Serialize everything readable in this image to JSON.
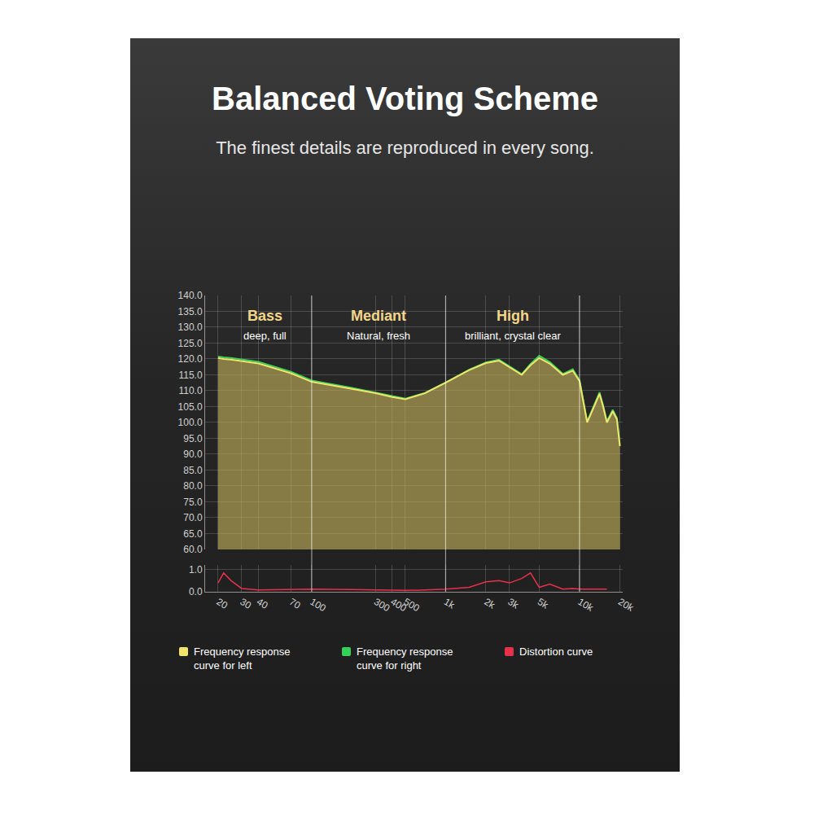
{
  "chart_data": {
    "type": "line",
    "title": "Balanced Voting Scheme",
    "subtitle": "The finest details are reproduced in every song.",
    "log": "x",
    "grid": true,
    "legend": "bottom",
    "x": [
      20,
      22,
      25,
      30,
      40,
      70,
      100,
      200,
      300,
      400,
      500,
      700,
      1000,
      1500,
      2000,
      2500,
      3000,
      3700,
      4300,
      5000,
      6000,
      7500,
      8900,
      10000,
      11400,
      12500,
      14100,
      15000,
      16000,
      17700,
      19000,
      20000
    ],
    "series": [
      {
        "name": "Frequency response curve for left",
        "color": "#f2e36a",
        "values": [
          120.3,
          120,
          119.8,
          119.4,
          118.6,
          115.5,
          112.8,
          110.6,
          109.2,
          108,
          107.3,
          109.2,
          112.5,
          116.5,
          118.7,
          119.5,
          117.5,
          115,
          118,
          120.3,
          118.5,
          115,
          116.3,
          113,
          100,
          104,
          109,
          105,
          100,
          103.5,
          101,
          92.5
        ]
      },
      {
        "name": "Frequency response curve for right",
        "color": "#35d05a",
        "values": [
          120.8,
          120.5,
          120.3,
          119.9,
          119.1,
          116,
          113.2,
          110.9,
          109.4,
          108.2,
          107.5,
          109.3,
          112.6,
          116.6,
          118.9,
          119.8,
          117.7,
          115.2,
          118.4,
          121,
          119,
          115.3,
          116.8,
          113.3,
          100.3,
          104.3,
          109.5,
          105.3,
          100.4,
          104,
          101.4,
          93
        ]
      },
      {
        "name": "Distortion curve",
        "color": "#e8304a",
        "axis": "y2",
        "values": [
          0.4,
          0.85,
          0.5,
          0.15,
          0.08,
          0.1,
          0.12,
          0.1,
          0.08,
          0.06,
          0.06,
          0.08,
          0.12,
          0.2,
          0.45,
          0.5,
          0.4,
          0.6,
          0.85,
          0.2,
          0.35,
          0.12,
          0.15,
          0.12,
          0.12,
          0.12,
          0.12,
          0.12,
          0.12,
          null,
          null,
          null
        ]
      }
    ],
    "sections": [
      {
        "label": "Bass",
        "note": "deep, full",
        "from": 20,
        "to": 100
      },
      {
        "label": "Mediant",
        "note": "Natural, fresh",
        "from": 100,
        "to": 1000
      },
      {
        "label": "High",
        "note": "brilliant, crystal clear",
        "from": 1000,
        "to": 10000
      }
    ],
    "xlim": [
      16,
      21000
    ],
    "xticks": [
      20,
      30,
      40,
      70,
      100,
      300,
      400,
      500,
      {
        "value": 1000,
        "label": "1k"
      },
      {
        "value": 2000,
        "label": "2k"
      },
      {
        "value": 3000,
        "label": "3k"
      },
      {
        "value": 5000,
        "label": "5k"
      },
      {
        "value": 10000,
        "label": "10k"
      },
      {
        "value": 20000,
        "label": "20k"
      }
    ],
    "ylim": [
      60,
      140
    ],
    "yticks": [
      {
        "value": 60,
        "label": "60.0"
      },
      {
        "value": 65,
        "label": "65.0"
      },
      {
        "value": 70,
        "label": "70.0"
      },
      {
        "value": 75,
        "label": "75.0"
      },
      {
        "value": 80,
        "label": "80.0"
      },
      {
        "value": 85,
        "label": "85.0"
      },
      {
        "value": 90,
        "label": "90.0"
      },
      {
        "value": 95,
        "label": "95.0"
      },
      {
        "value": 100,
        "label": "100.0"
      },
      {
        "value": 105,
        "label": "105.0"
      },
      {
        "value": 110,
        "label": "110.0"
      },
      {
        "value": 115,
        "label": "115.0"
      },
      {
        "value": 120,
        "label": "120.0"
      },
      {
        "value": 125,
        "label": "125.0"
      },
      {
        "value": 130,
        "label": "130.0"
      },
      {
        "value": 135,
        "label": "135.0"
      },
      {
        "value": 140,
        "label": "140.0"
      }
    ],
    "y2lim": [
      0,
      1.2
    ],
    "y2ticks": [
      {
        "value": 0,
        "label": "0.0"
      },
      {
        "value": 1,
        "label": "1.0"
      }
    ]
  }
}
